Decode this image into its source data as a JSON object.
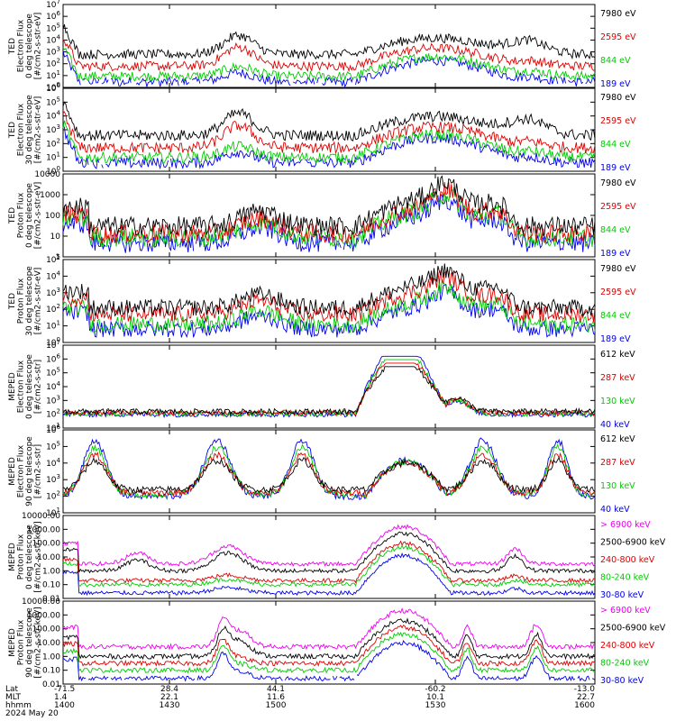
{
  "chart_data": [
    {
      "type": "line",
      "ylabel_lines": [
        "TED",
        "Electron Flux",
        "0 deg telescope",
        "[#/cm2-s-str-eV]"
      ],
      "y_log": true,
      "ylim": [
        1,
        10000000
      ],
      "ytick_labels": [
        "10^0",
        "10^1",
        "10^2",
        "10^3",
        "10^4",
        "10^5",
        "10^6",
        "10^7"
      ],
      "legend": [
        {
          "label": "7980 eV",
          "color": "#000000"
        },
        {
          "label": "2595 eV",
          "color": "#dd0000"
        },
        {
          "label": "844 eV",
          "color": "#00cc00"
        },
        {
          "label": "189 eV",
          "color": "#0000ee"
        }
      ],
      "shape": "A",
      "base": [
        0.45,
        0.95,
        1.8,
        2.8
      ]
    },
    {
      "type": "line",
      "ylabel_lines": [
        "TED",
        "Electron Flux",
        "30 deg telescope",
        "[#/cm2-s-str-eV]"
      ],
      "y_log": true,
      "ylim": [
        1,
        1000000
      ],
      "ytick_labels": [
        "10^0",
        "10^1",
        "10^2",
        "10^3",
        "10^4",
        "10^5",
        "10^6"
      ],
      "legend": [
        {
          "label": "7980 eV",
          "color": "#000000"
        },
        {
          "label": "2595 eV",
          "color": "#dd0000"
        },
        {
          "label": "844 eV",
          "color": "#00cc00"
        },
        {
          "label": "189 eV",
          "color": "#0000ee"
        }
      ],
      "shape": "A",
      "base": [
        0.6,
        1.0,
        1.7,
        2.6
      ]
    },
    {
      "type": "line",
      "ylabel_lines": [
        "TED",
        "Proton Flux",
        "0 deg telescope",
        "[#/cm2-s-str-eV]"
      ],
      "y_log": true,
      "ylim": [
        1,
        20000
      ],
      "ytick_labels": [
        "1",
        "10",
        "100",
        "1000",
        "10000"
      ],
      "legend": [
        {
          "label": "7980 eV",
          "color": "#000000"
        },
        {
          "label": "2595 eV",
          "color": "#dd0000"
        },
        {
          "label": "844 eV",
          "color": "#00cc00"
        },
        {
          "label": "189 eV",
          "color": "#0000ee"
        }
      ],
      "shape": "B",
      "base": [
        0.7,
        1.0,
        1.2,
        1.6
      ]
    },
    {
      "type": "line",
      "ylabel_lines": [
        "TED",
        "Proton Flux",
        "30 deg telescope",
        "[#/cm2-s-str-eV]"
      ],
      "y_log": true,
      "ylim": [
        1,
        100000
      ],
      "ytick_labels": [
        "10^0",
        "10^1",
        "10^2",
        "10^3",
        "10^4",
        "10^5"
      ],
      "legend": [
        {
          "label": "7980 eV",
          "color": "#000000"
        },
        {
          "label": "2595 eV",
          "color": "#dd0000"
        },
        {
          "label": "844 eV",
          "color": "#00cc00"
        },
        {
          "label": "189 eV",
          "color": "#0000ee"
        }
      ],
      "shape": "B",
      "base": [
        0.8,
        1.1,
        1.7,
        2.1
      ]
    },
    {
      "type": "line",
      "ylabel_lines": [
        "MEPED",
        "Electron Flux",
        "0 deg telescope",
        "[#/cm2-s-str]"
      ],
      "y_log": true,
      "ylim": [
        10,
        10000000
      ],
      "ytick_labels": [
        "10^1",
        "10^2",
        "10^3",
        "10^4",
        "10^5",
        "10^6",
        "10^7"
      ],
      "legend": [
        {
          "label": "612 keV",
          "color": "#000000"
        },
        {
          "label": "287 keV",
          "color": "#dd0000"
        },
        {
          "label": "130 keV",
          "color": "#00cc00"
        },
        {
          "label": "40 keV",
          "color": "#0000ee"
        }
      ],
      "shape": "C",
      "base": [
        2.0,
        2.05,
        2.1,
        2.2
      ]
    },
    {
      "type": "line",
      "ylabel_lines": [
        "MEPED",
        "Electron Flux",
        "90 deg telescope",
        "[#/cm2-s-str]"
      ],
      "y_log": true,
      "ylim": [
        10,
        1000000
      ],
      "ytick_labels": [
        "10^1",
        "10^2",
        "10^3",
        "10^4",
        "10^5",
        "10^6"
      ],
      "legend": [
        {
          "label": "612 keV",
          "color": "#000000"
        },
        {
          "label": "287 keV",
          "color": "#dd0000"
        },
        {
          "label": "130 keV",
          "color": "#00cc00"
        },
        {
          "label": "40 keV",
          "color": "#0000ee"
        }
      ],
      "shape": "D",
      "base": [
        2.0,
        2.1,
        2.2,
        2.4
      ]
    },
    {
      "type": "line",
      "ylabel_lines": [
        "MEPED",
        "Proton Flux",
        "0 deg telescope",
        "[#/cm2-s-str-keV]"
      ],
      "y_log": true,
      "ylim": [
        0.01,
        10000
      ],
      "ytick_labels": [
        "0.01",
        "0.10",
        "1.00",
        "10.00",
        "100.00",
        "1000.00",
        "10000.00"
      ],
      "legend": [
        {
          "label": "> 6900 keV",
          "color": "#ee00ee"
        },
        {
          "label": "2500-6900 keV",
          "color": "#000000"
        },
        {
          "label": "240-800 keV",
          "color": "#dd0000"
        },
        {
          "label": "80-240 keV",
          "color": "#00cc00"
        },
        {
          "label": "30-80 keV",
          "color": "#0000ee"
        }
      ],
      "shape": "E",
      "base": [
        -1.6,
        -1.0,
        -0.7,
        0.0,
        0.5
      ]
    },
    {
      "type": "line",
      "ylabel_lines": [
        "MEPED",
        "Proton Flux",
        "90 deg telescope",
        "[#/cm2-s-str-keV]"
      ],
      "y_log": true,
      "ylim": [
        0.01,
        10000
      ],
      "ytick_labels": [
        "0.01",
        "0.10",
        "1.00",
        "10.00",
        "100.00",
        "1000.00",
        "10000.00"
      ],
      "legend": [
        {
          "label": "> 6900 keV",
          "color": "#ee00ee"
        },
        {
          "label": "2500-6900 keV",
          "color": "#000000"
        },
        {
          "label": "240-800 keV",
          "color": "#dd0000"
        },
        {
          "label": "80-240 keV",
          "color": "#00cc00"
        },
        {
          "label": "30-80 keV",
          "color": "#0000ee"
        }
      ],
      "shape": "F",
      "base": [
        -1.6,
        -1.0,
        -0.5,
        0.0,
        0.7
      ]
    }
  ],
  "x_axis": {
    "row_labels": [
      "Lat",
      "MLT",
      "hhmm",
      "2024 May 20"
    ],
    "ticks": [
      {
        "lat": "-71.5",
        "mlt": "1.4",
        "hhmm": "1400",
        "frac": 0.0
      },
      {
        "lat": "28.4",
        "mlt": "22.1",
        "hhmm": "1430",
        "frac": 0.2
      },
      {
        "lat": "44.1",
        "mlt": "11.6",
        "hhmm": "1500",
        "frac": 0.4
      },
      {
        "lat": "-60.2",
        "mlt": "10.1",
        "hhmm": "1530",
        "frac": 0.7
      },
      {
        "lat": "-13.0",
        "mlt": "22.7",
        "hhmm": "1600",
        "frac": 1.0
      }
    ]
  }
}
